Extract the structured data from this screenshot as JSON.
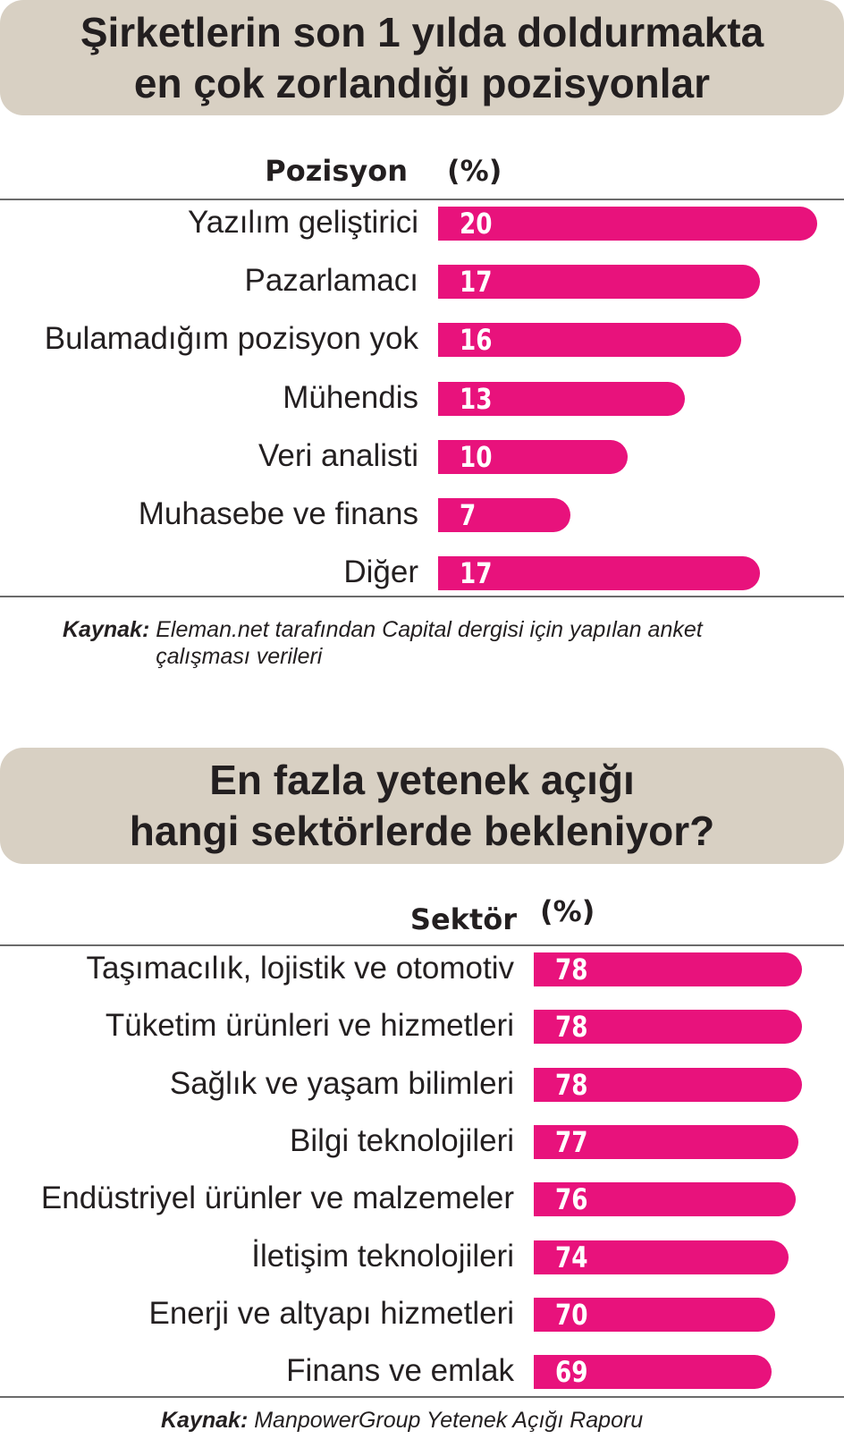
{
  "chart_data": [
    {
      "type": "bar",
      "orientation": "horizontal",
      "title": "Şirketlerin son 1 yılda doldurmakta\nen çok zorlandığı pozisyonlar",
      "category_header": "Pozisyon",
      "value_header": "(%)",
      "categories": [
        "Yazılım geliştirici",
        "Pazarlamacı",
        "Bulamadığım pozisyon yok",
        "Mühendis",
        "Veri analisti",
        "Muhasebe ve finans",
        "Diğer"
      ],
      "values": [
        20,
        17,
        16,
        13,
        10,
        7,
        17
      ],
      "source_label": "Kaynak:",
      "source_text": "Eleman.net tarafından Capital dergisi için yapılan anket çalışması verileri",
      "bar_color": "#e8127c"
    },
    {
      "type": "bar",
      "orientation": "horizontal",
      "title": "En fazla yetenek açığı\nhangi sektörlerde bekleniyor?",
      "category_header": "Sektör",
      "value_header": "(%)",
      "categories": [
        "Taşımacılık, lojistik ve otomotiv",
        "Tüketim ürünleri ve hizmetleri",
        "Sağlık ve yaşam bilimleri",
        "Bilgi teknolojileri",
        "Endüstriyel ürünler ve malzemeler",
        "İletişim teknolojileri",
        "Enerji ve altyapı hizmetleri",
        "Finans ve emlak"
      ],
      "values": [
        78,
        78,
        78,
        77,
        76,
        74,
        70,
        69
      ],
      "source_label": "Kaynak:",
      "source_text": "ManpowerGroup Yetenek Açığı Raporu",
      "bar_color": "#e8127c"
    }
  ],
  "colors": {
    "title_background": "#d8d0c3",
    "bar": "#e8127c",
    "text": "#231f20",
    "rule": "#6b6b6b"
  }
}
